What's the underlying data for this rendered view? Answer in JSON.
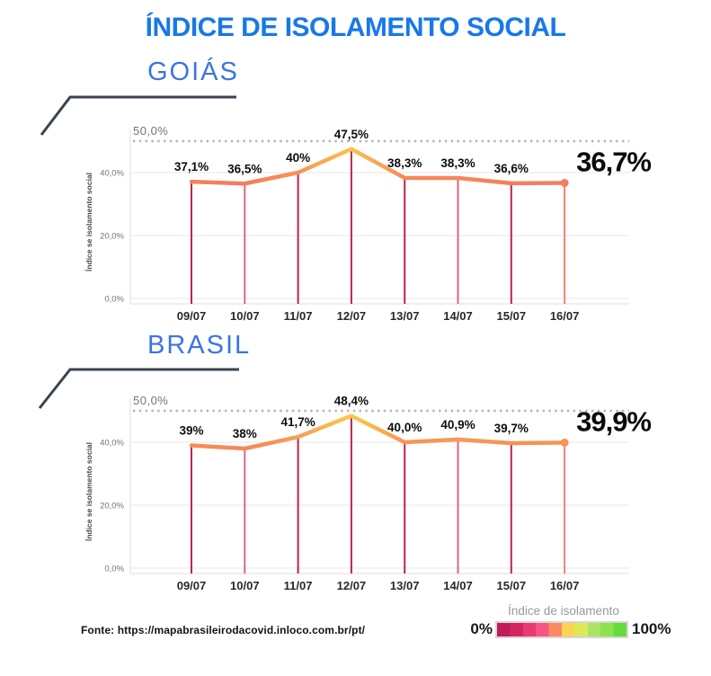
{
  "title": "ÍNDICE DE ISOLAMENTO SOCIAL",
  "colors": {
    "accent_blue": "#1878e8",
    "subtitle_blue": "#3b74e4",
    "line_low": "#f5795f",
    "line_high": "#fcca49",
    "dropline_dark": "#bf2448",
    "dropline_light": "#d9697f",
    "grid": "#ececec",
    "axis": "#e4e4e4",
    "dotted_threshold": "#b3b3b3",
    "label_text": "#0d0d0d",
    "tick_text": "#70757a"
  },
  "chart_data": [
    {
      "type": "line",
      "title": "GOIÁS",
      "ylabel": "Índice se isolamento social",
      "xlabel": "",
      "ylim": [
        0,
        50
      ],
      "grid": true,
      "categories": [
        "09/07",
        "10/07",
        "11/07",
        "12/07",
        "13/07",
        "14/07",
        "15/07",
        "16/07"
      ],
      "values": [
        37.1,
        36.5,
        40,
        47.5,
        38.3,
        38.3,
        36.6,
        36.7
      ],
      "point_labels": [
        "37,1%",
        "36,5%",
        "40%",
        "47,5%",
        "38,3%",
        "38,3%",
        "36,6%",
        ""
      ],
      "highlight_label": "36,7%",
      "ytick_values": [
        0,
        20,
        40
      ],
      "ytick_labels": [
        "0,0%",
        "20,0%",
        "40,0%"
      ],
      "threshold_value": 50,
      "threshold_label": "50,0%",
      "dropline_colors": [
        "#bf2448",
        "#d9697f",
        "#bf2448",
        "#bf2448",
        "#bf2448",
        "#d9697f",
        "#bf2448",
        "#f4836c"
      ]
    },
    {
      "type": "line",
      "title": "BRASIL",
      "ylabel": "Índice se isolamento social",
      "xlabel": "",
      "ylim": [
        0,
        50
      ],
      "grid": true,
      "categories": [
        "09/07",
        "10/07",
        "11/07",
        "12/07",
        "13/07",
        "14/07",
        "15/07",
        "16/07"
      ],
      "values": [
        39,
        38,
        41.7,
        48.4,
        40.0,
        40.9,
        39.7,
        39.9
      ],
      "point_labels": [
        "39%",
        "38%",
        "41,7%",
        "48,4%",
        "40,0%",
        "40,9%",
        "39,7%",
        ""
      ],
      "highlight_label": "39,9%",
      "ytick_values": [
        0,
        20,
        40
      ],
      "ytick_labels": [
        "0,0%",
        "20,0%",
        "40,0%"
      ],
      "threshold_value": 50,
      "threshold_label": "50,0%",
      "dropline_colors": [
        "#bf2448",
        "#d9697f",
        "#bf2448",
        "#bf2448",
        "#bf2448",
        "#d9697f",
        "#bf2448",
        "#ef7f83"
      ]
    }
  ],
  "footer": {
    "source": "Fonte: https://mapabrasileirodacovid.inloco.com.br/pt/",
    "legend": {
      "title": "Índice de isolamento",
      "min_label": "0%",
      "max_label": "100%",
      "scale_colors": [
        "#c01d5a",
        "#d42562",
        "#e93a72",
        "#f65682",
        "#f98a62",
        "#fbd350",
        "#dcea5a",
        "#a9e463",
        "#8ce250",
        "#63dc3c"
      ]
    }
  }
}
